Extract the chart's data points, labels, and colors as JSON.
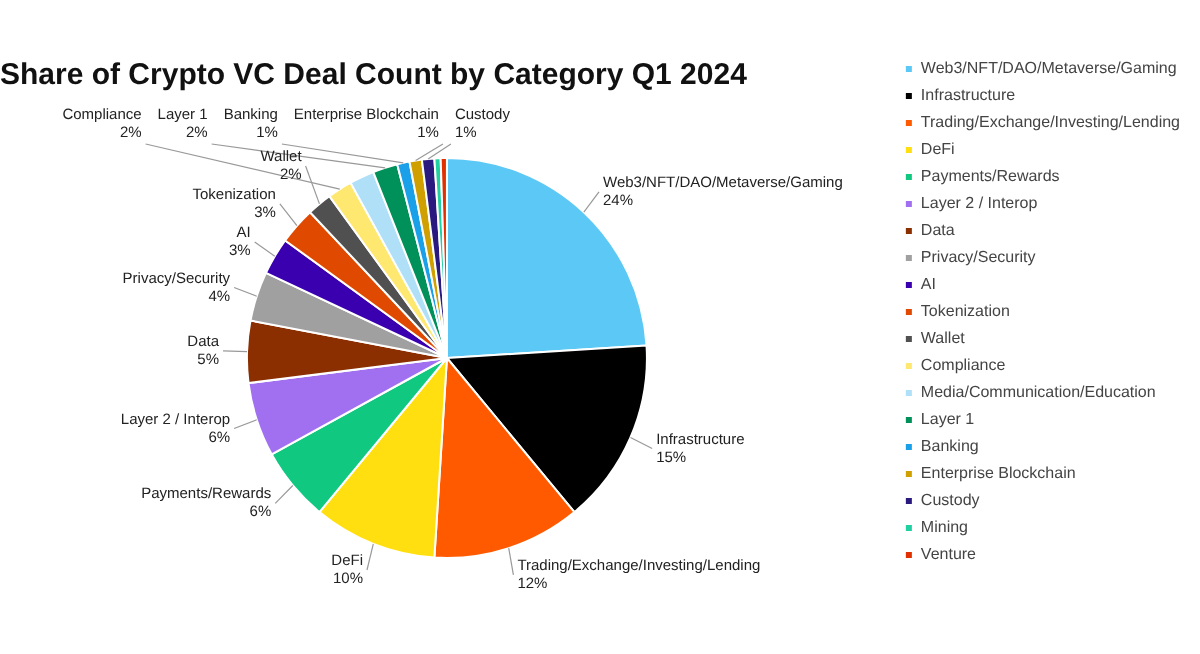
{
  "chart_data": {
    "type": "pie",
    "title": "Share of Crypto VC Deal Count by Category Q1 2024",
    "categories": [
      "Web3/NFT/DAO/Metaverse/Gaming",
      "Infrastructure",
      "Trading/Exchange/Investing/Lending",
      "DeFi",
      "Payments/Rewards",
      "Layer 2 / Interop",
      "Data",
      "Privacy/Security",
      "AI",
      "Tokenization",
      "Wallet",
      "Compliance",
      "Media/Communication/Education",
      "Layer 1",
      "Banking",
      "Enterprise Blockchain",
      "Custody",
      "Mining",
      "Venture"
    ],
    "values": [
      24,
      15,
      12,
      10,
      6,
      6,
      5,
      4,
      3,
      3,
      2,
      2,
      2,
      2,
      1,
      1,
      1,
      0.5,
      0.5
    ],
    "value_labels": [
      "24%",
      "15%",
      "12%",
      "10%",
      "6%",
      "6%",
      "5%",
      "4%",
      "3%",
      "3%",
      "2%",
      "2%",
      null,
      "2%",
      "1%",
      "1%",
      "1%",
      null,
      null
    ],
    "colors": [
      "#5bc8f5",
      "#000000",
      "#ff5a00",
      "#ffdf10",
      "#10c880",
      "#a070f0",
      "#8b2f00",
      "#a0a0a0",
      "#3a00b0",
      "#e04a00",
      "#505050",
      "#ffe870",
      "#b0e0f8",
      "#00905a",
      "#1aa0e8",
      "#d0a000",
      "#2a1a80",
      "#20d0a0",
      "#e03000"
    ],
    "legend": "right"
  }
}
